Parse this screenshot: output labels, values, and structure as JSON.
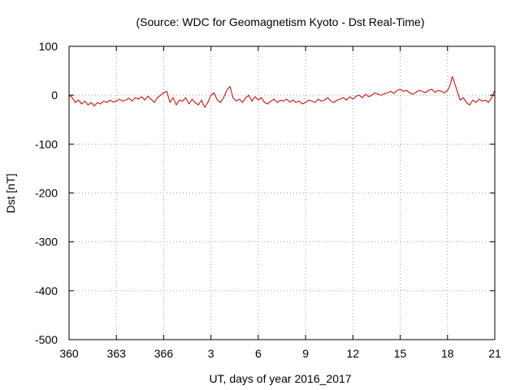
{
  "chart_data": {
    "type": "line",
    "title": "(Source: WDC for Geomagnetism Kyoto - Dst Real-Time)",
    "xlabel": "UT, days of year 2016_2017",
    "ylabel": "Dst [nT]",
    "ylim": [
      -500,
      100
    ],
    "xlim": [
      360,
      387
    ],
    "x_ticks": [
      {
        "value": 360,
        "label": "360"
      },
      {
        "value": 363,
        "label": "363"
      },
      {
        "value": 366,
        "label": "366"
      },
      {
        "value": 369,
        "label": "3"
      },
      {
        "value": 372,
        "label": "6"
      },
      {
        "value": 375,
        "label": "9"
      },
      {
        "value": 378,
        "label": "12"
      },
      {
        "value": 381,
        "label": "15"
      },
      {
        "value": 384,
        "label": "18"
      },
      {
        "value": 387,
        "label": "21"
      }
    ],
    "y_ticks": [
      {
        "value": 100,
        "label": "100"
      },
      {
        "value": 0,
        "label": "0"
      },
      {
        "value": -100,
        "label": "-100"
      },
      {
        "value": -200,
        "label": "-200"
      },
      {
        "value": -300,
        "label": "-300"
      },
      {
        "value": -400,
        "label": "-400"
      },
      {
        "value": -500,
        "label": "-500"
      }
    ],
    "grid": true,
    "line_color": "#cc0000",
    "series": [
      {
        "x": [
          360.0,
          360.2,
          360.4,
          360.6,
          360.8,
          361.0,
          361.2,
          361.4,
          361.6,
          361.8,
          362.0,
          362.2,
          362.4,
          362.6,
          362.8,
          363.0,
          363.2,
          363.4,
          363.6,
          363.8,
          364.0,
          364.2,
          364.4,
          364.6,
          364.8,
          365.0,
          365.2,
          365.4,
          365.6,
          365.8,
          366.0,
          366.2,
          366.4,
          366.6,
          366.8,
          367.0,
          367.2,
          367.4,
          367.6,
          367.8,
          368.0,
          368.2,
          368.4,
          368.6,
          368.8,
          369.0,
          369.2,
          369.4,
          369.6,
          369.8,
          370.0,
          370.2,
          370.4,
          370.6,
          370.8,
          371.0,
          371.2,
          371.4,
          371.6,
          371.8,
          372.0,
          372.2,
          372.4,
          372.6,
          372.8,
          373.0,
          373.2,
          373.4,
          373.6,
          373.8,
          374.0,
          374.2,
          374.4,
          374.6,
          374.8,
          375.0,
          375.2,
          375.4,
          375.6,
          375.8,
          376.0,
          376.2,
          376.4,
          376.6,
          376.8,
          377.0,
          377.2,
          377.4,
          377.6,
          377.8,
          378.0,
          378.2,
          378.4,
          378.6,
          378.8,
          379.0,
          379.2,
          379.4,
          379.6,
          379.8,
          380.0,
          380.2,
          380.4,
          380.6,
          380.8,
          381.0,
          381.2,
          381.4,
          381.6,
          381.8,
          382.0,
          382.2,
          382.4,
          382.6,
          382.8,
          383.0,
          383.2,
          383.4,
          383.6,
          383.8,
          384.0,
          384.1,
          384.2,
          384.3,
          384.4,
          384.6,
          384.8,
          385.0,
          385.2,
          385.4,
          385.6,
          385.8,
          386.0,
          386.2,
          386.4,
          386.6,
          386.8,
          387.0
        ],
        "values": [
          0,
          -5,
          -15,
          -10,
          -18,
          -12,
          -20,
          -15,
          -22,
          -15,
          -18,
          -12,
          -15,
          -10,
          -14,
          -12,
          -8,
          -12,
          -10,
          -6,
          -12,
          -5,
          -8,
          -3,
          -10,
          -2,
          -8,
          -15,
          -5,
          0,
          5,
          8,
          -15,
          -5,
          -20,
          -10,
          -12,
          -5,
          -18,
          -8,
          -15,
          -20,
          -10,
          -25,
          -15,
          0,
          5,
          -10,
          -15,
          -5,
          10,
          18,
          -5,
          -12,
          -8,
          -15,
          -5,
          0,
          -12,
          -3,
          -10,
          -5,
          -15,
          -18,
          -12,
          -8,
          -15,
          -10,
          -12,
          -8,
          -14,
          -10,
          -15,
          -12,
          -18,
          -15,
          -10,
          -12,
          -15,
          -8,
          -12,
          -10,
          -5,
          -12,
          -15,
          -10,
          -8,
          -5,
          -10,
          -3,
          -8,
          -2,
          0,
          -5,
          2,
          -3,
          0,
          5,
          2,
          0,
          3,
          5,
          8,
          4,
          10,
          12,
          8,
          10,
          5,
          2,
          6,
          10,
          8,
          5,
          10,
          12,
          6,
          10,
          8,
          5,
          10,
          15,
          25,
          38,
          30,
          10,
          -10,
          -5,
          -15,
          -20,
          -10,
          -15,
          -8,
          -12,
          -10,
          -15,
          -5,
          10
        ]
      }
    ]
  }
}
